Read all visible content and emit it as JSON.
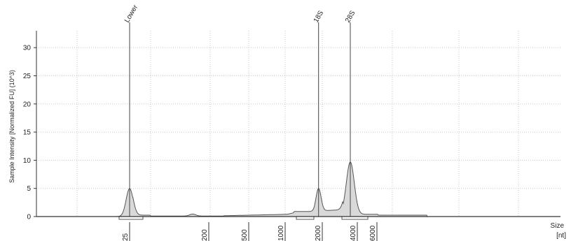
{
  "chart_data": {
    "type": "area",
    "xlabel": "Size",
    "xunit": "[nt]",
    "ylabel": "Sample Intensity [Normalized FU] (10^3)",
    "ylim": [
      0,
      33
    ],
    "yticks": [
      0,
      5,
      10,
      15,
      20,
      25,
      30
    ],
    "grid": true,
    "size_ladder": [
      "25",
      "200",
      "500",
      "1000",
      "2000",
      "4000",
      "6000"
    ],
    "peaks": [
      {
        "name": "Lower",
        "size": 25,
        "height": 5.0
      },
      {
        "name": "18S",
        "size": 1900,
        "height": 5.1
      },
      {
        "name": "28S",
        "size": 3600,
        "height": 10.0
      }
    ],
    "series": [
      {
        "x": [
          25,
          200,
          500,
          1000,
          1900,
          3600,
          6000
        ],
        "y": [
          5.0,
          0.3,
          0.2,
          0.4,
          5.1,
          10.0,
          0.2
        ]
      }
    ],
    "colors": {
      "trace": "#555555",
      "fill": "#d9d9d9",
      "axis": "#333333",
      "grid": "#c8c8c8"
    }
  }
}
